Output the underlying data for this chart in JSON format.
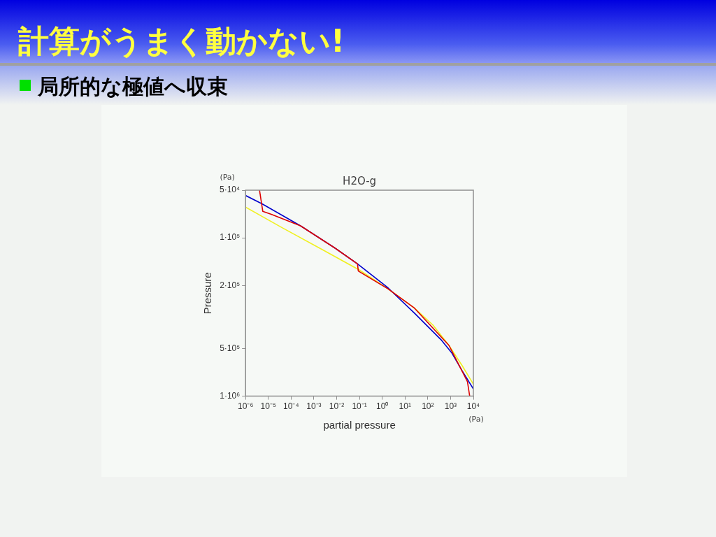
{
  "chart_data": {
    "type": "line",
    "title": "計算がうまく動かない!",
    "subtitle": "局所的な極値へ収束",
    "xlabel": "partial pressure",
    "ylabel": "Pressure",
    "annotations": [
      "H2O-g",
      "(Pa)",
      "(Pa)"
    ],
    "log": "xy",
    "grid": false,
    "legend": false,
    "marker": "none",
    "line_style": "solid",
    "xlim": [
      1e-06,
      10000.0
    ],
    "xticks": [
      {
        "value": 1e-06,
        "label": "10⁻⁶"
      },
      {
        "value": 1e-05,
        "label": "10⁻⁵"
      },
      {
        "value": 0.0001,
        "label": "10⁻⁴"
      },
      {
        "value": 0.001,
        "label": "10⁻³"
      },
      {
        "value": 0.01,
        "label": "10⁻²"
      },
      {
        "value": 0.1,
        "label": "10⁻¹"
      },
      {
        "value": 1,
        "label": "10⁰"
      },
      {
        "value": 10,
        "label": "10¹"
      },
      {
        "value": 100,
        "label": "10²"
      },
      {
        "value": 1000,
        "label": "10³"
      },
      {
        "value": 10000,
        "label": "10⁴"
      }
    ],
    "ylim": [
      1000000.0,
      50000.0
    ],
    "yticks": [
      {
        "value": 50000,
        "label": "5·10⁴"
      },
      {
        "value": 100000,
        "label": "1·10⁵"
      },
      {
        "value": 200000,
        "label": "2·10⁵"
      },
      {
        "value": 500000,
        "label": "5·10⁵"
      },
      {
        "value": 1000000,
        "label": "1·10⁶"
      }
    ],
    "series": [
      {
        "color": "#f0f020",
        "x": [
          1e-06,
          3.9e-05,
          0.0022,
          0.094,
          1.8,
          26,
          170,
          850,
          3200,
          10000.0
        ],
        "values": [
          64000,
          86000,
          118000,
          159000,
          210000,
          278000,
          356000,
          478000,
          640000,
          840000
        ]
      },
      {
        "color": "#0000cc",
        "x": [
          1e-06,
          5.3e-06,
          0.00026,
          0.0084,
          0.082,
          1.8,
          26,
          380,
          1100,
          3200,
          10000.0
        ],
        "values": [
          54000,
          61000,
          84000,
          116000,
          146000,
          207000,
          299000,
          440000,
          530000,
          690000,
          900000
        ]
      },
      {
        "color": "#dd0000",
        "x": [
          4.1e-06,
          5.7e-06,
          1.35e-05,
          0.00026,
          0.0084,
          0.082,
          0.089,
          1.8,
          26,
          850,
          5500,
          6900
        ],
        "values": [
          50000,
          68000,
          71000,
          84000,
          116000,
          146000,
          162000,
          210000,
          278000,
          478000,
          810000,
          1000000
        ]
      }
    ]
  }
}
